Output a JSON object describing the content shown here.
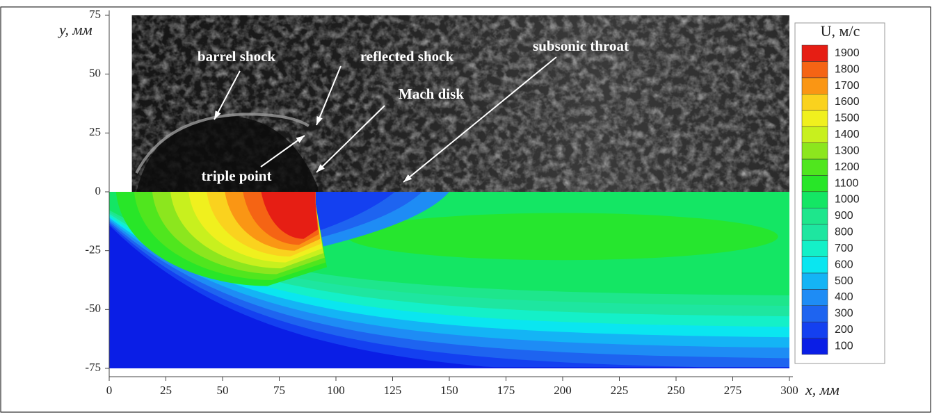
{
  "chart_data": {
    "type": "contour",
    "xlabel": "x, мм",
    "ylabel": "y, мм",
    "xlim": [
      0,
      300
    ],
    "ylim": [
      -75,
      75
    ],
    "xticks": [
      0,
      25,
      50,
      75,
      100,
      125,
      150,
      175,
      200,
      225,
      250,
      275,
      300
    ],
    "yticks": [
      -75,
      -50,
      -25,
      0,
      25,
      50,
      75
    ],
    "annotations": [
      "barrel shock",
      "reflected shock",
      "subsonic throat",
      "Mach disk",
      "triple point"
    ],
    "colorbar": {
      "title": "U, м/с",
      "levels": [
        100,
        200,
        300,
        400,
        500,
        600,
        700,
        800,
        900,
        1000,
        1100,
        1200,
        1300,
        1400,
        1500,
        1600,
        1700,
        1800,
        1900
      ],
      "colors": [
        "#0a1ee6",
        "#1440f0",
        "#1e64f0",
        "#1e8cf5",
        "#14b4f5",
        "#0ae6f0",
        "#14f0c8",
        "#1ee6a0",
        "#1ee68c",
        "#14e664",
        "#28e628",
        "#50e61e",
        "#8ce61e",
        "#c8f01e",
        "#f0f01e",
        "#fad21e",
        "#fa9614",
        "#f56414",
        "#e61e14"
      ]
    }
  }
}
